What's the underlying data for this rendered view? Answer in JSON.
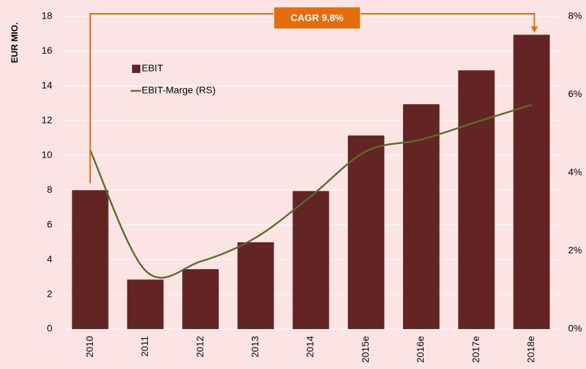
{
  "chart_data": {
    "type": "bar",
    "y_label": "EUR MIO.",
    "annotation": "CAGR 9,8%",
    "categories": [
      "2010",
      "2011",
      "2012",
      "2013",
      "2014",
      "2015e",
      "2016e",
      "2017e",
      "2018e"
    ],
    "series": [
      {
        "name": "EBIT",
        "color": "#632523",
        "values": [
          8.0,
          2.85,
          3.45,
          5.0,
          7.95,
          11.15,
          12.95,
          14.9,
          16.95
        ]
      },
      {
        "name": "EBIT-Marge (RS)",
        "type": "line",
        "axis": "y2",
        "color": "#5a6b2a",
        "values": [
          4.58,
          1.5,
          1.73,
          2.34,
          3.4,
          4.55,
          4.85,
          5.3,
          5.74
        ]
      }
    ],
    "ylim": [
      0,
      18
    ],
    "yticks": [
      0,
      2,
      4,
      6,
      8,
      10,
      12,
      14,
      16,
      18
    ],
    "y2lim": [
      0,
      8
    ],
    "y2ticks": [
      {
        "value": 0,
        "label": "0%"
      },
      {
        "value": 2,
        "label": "2%"
      },
      {
        "value": 4,
        "label": "4%"
      },
      {
        "value": 6,
        "label": "6%"
      },
      {
        "value": 8,
        "label": "8%"
      }
    ],
    "grid": true
  }
}
